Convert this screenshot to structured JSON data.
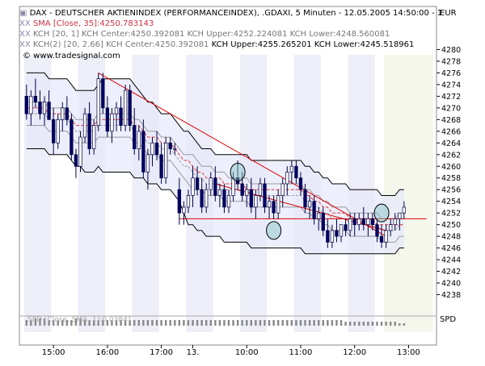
{
  "header": {
    "title_pre": "▣",
    "title": "DAX  - DEUTSCHER AKTIENINDEX (PERFORMANCEINDEX), .GDAXI, 5 Minuten - 12.05.2005 14:50:00 - 1",
    "currency": "EUR",
    "indicators": {
      "sma_prefix": "XX",
      "sma": "SMA [Close, 35]:4250.783143",
      "kch1_prefix": "XX",
      "kch1": "KCH [20, 1] KCH Center:4250.392081 KCH Upper:4252.224081 KCH Lower:4248.560081",
      "kch2_prefix": "XX",
      "kch2_center": "KCH(2) [20, 2.66] KCH Center:4250.392081 ",
      "kch2_rest": "KCH Upper:4255.265201 KCH Lower:4245.518961"
    },
    "logo": "© www.tradesignal.com"
  },
  "subpanel": {
    "label": "SPD [Close, SMA, 1]:0.03841",
    "unit": "SPD"
  },
  "colors": {
    "up": "#ffffff",
    "down": "#000066",
    "sma": "#e03a3a",
    "kc_inner": "#999999",
    "kc_outer": "#000000",
    "band_fill": "#e6e8fb",
    "trend": "#dd0000",
    "ellipse": "#80c0c0",
    "shade_session": "#eeeef8",
    "shade_alt": "#f6f7ec"
  },
  "chart_data": {
    "type": "candlestick",
    "ylim": [
      4236,
      4282
    ],
    "yticks": [
      4238,
      4240,
      4242,
      4244,
      4246,
      4248,
      4250,
      4252,
      4254,
      4256,
      4258,
      4260,
      4262,
      4264,
      4266,
      4268,
      4270,
      4272,
      4274,
      4276,
      4278,
      4280
    ],
    "time_labels": [
      {
        "label": "15:00",
        "bar": 6
      },
      {
        "label": "16:00",
        "bar": 18
      },
      {
        "label": "17:00",
        "bar": 30
      },
      {
        "label": "13.",
        "bar": 37
      },
      {
        "label": "10:00",
        "bar": 49
      },
      {
        "label": "11:00",
        "bar": 61
      },
      {
        "label": "12:00",
        "bar": 73
      },
      {
        "label": "13:00",
        "bar": 85
      }
    ],
    "candles": [
      [
        4272,
        4274,
        4268,
        4269
      ],
      [
        4269,
        4273,
        4267,
        4272
      ],
      [
        4272,
        4275,
        4270,
        4271
      ],
      [
        4271,
        4273,
        4268,
        4269
      ],
      [
        4269,
        4272,
        4267,
        4271
      ],
      [
        4271,
        4273,
        4268,
        4268
      ],
      [
        4268,
        4270,
        4262,
        4264
      ],
      [
        4264,
        4269,
        4263,
        4268
      ],
      [
        4268,
        4271,
        4266,
        4270
      ],
      [
        4270,
        4272,
        4267,
        4268
      ],
      [
        4268,
        4269,
        4261,
        4262
      ],
      [
        4262,
        4263,
        4258,
        4260
      ],
      [
        4260,
        4266,
        4259,
        4265
      ],
      [
        4265,
        4270,
        4264,
        4269
      ],
      [
        4269,
        4271,
        4262,
        4263
      ],
      [
        4263,
        4268,
        4262,
        4267
      ],
      [
        4267,
        4276,
        4266,
        4275
      ],
      [
        4275,
        4276,
        4269,
        4270
      ],
      [
        4270,
        4272,
        4265,
        4266
      ],
      [
        4266,
        4270,
        4264,
        4269
      ],
      [
        4269,
        4271,
        4266,
        4270
      ],
      [
        4270,
        4272,
        4266,
        4267
      ],
      [
        4267,
        4274,
        4266,
        4273
      ],
      [
        4273,
        4274,
        4266,
        4267
      ],
      [
        4267,
        4270,
        4262,
        4263
      ],
      [
        4263,
        4267,
        4261,
        4266
      ],
      [
        4266,
        4268,
        4258,
        4259
      ],
      [
        4259,
        4263,
        4256,
        4262
      ],
      [
        4262,
        4265,
        4260,
        4264
      ],
      [
        4264,
        4266,
        4261,
        4262
      ],
      [
        4262,
        4264,
        4257,
        4258
      ],
      [
        4258,
        4265,
        4257,
        4264
      ],
      [
        4264,
        4265,
        4262,
        4263
      ],
      [
        4263,
        4264,
        4262,
        4263
      ],
      [
        4256,
        4258,
        4250,
        4252
      ],
      [
        4252,
        4254,
        4250,
        4253
      ],
      [
        4253,
        4256,
        4252,
        4255
      ],
      [
        4255,
        4260,
        4253,
        4258
      ],
      [
        4258,
        4260,
        4255,
        4256
      ],
      [
        4256,
        4258,
        4252,
        4253
      ],
      [
        4253,
        4257,
        4252,
        4256
      ],
      [
        4256,
        4259,
        4255,
        4258
      ],
      [
        4258,
        4260,
        4254,
        4255
      ],
      [
        4255,
        4257,
        4253,
        4256
      ],
      [
        4256,
        4257,
        4252,
        4253
      ],
      [
        4253,
        4256,
        4252,
        4255
      ],
      [
        4255,
        4259,
        4254,
        4258
      ],
      [
        4258,
        4261,
        4256,
        4257
      ],
      [
        4257,
        4259,
        4254,
        4255
      ],
      [
        4255,
        4257,
        4253,
        4256
      ],
      [
        4256,
        4258,
        4252,
        4253
      ],
      [
        4253,
        4256,
        4251,
        4255
      ],
      [
        4255,
        4258,
        4254,
        4257
      ],
      [
        4257,
        4258,
        4252,
        4253
      ],
      [
        4253,
        4255,
        4251,
        4254
      ],
      [
        4254,
        4255,
        4251,
        4252
      ],
      [
        4252,
        4256,
        4251,
        4255
      ],
      [
        4255,
        4258,
        4253,
        4257
      ],
      [
        4257,
        4260,
        4255,
        4259
      ],
      [
        4259,
        4261,
        4257,
        4260
      ],
      [
        4260,
        4261,
        4257,
        4258
      ],
      [
        4258,
        4259,
        4255,
        4256
      ],
      [
        4256,
        4257,
        4252,
        4253
      ],
      [
        4253,
        4255,
        4251,
        4254
      ],
      [
        4254,
        4255,
        4250,
        4251
      ],
      [
        4251,
        4253,
        4249,
        4252
      ],
      [
        4252,
        4253,
        4248,
        4249
      ],
      [
        4249,
        4251,
        4246,
        4247
      ],
      [
        4247,
        4250,
        4246,
        4249
      ],
      [
        4249,
        4251,
        4247,
        4248
      ],
      [
        4248,
        4250,
        4247,
        4250
      ],
      [
        4250,
        4251,
        4248,
        4249
      ],
      [
        4249,
        4252,
        4248,
        4251
      ],
      [
        4251,
        4252,
        4248,
        4250
      ],
      [
        4250,
        4252,
        4249,
        4251
      ],
      [
        4251,
        4253,
        4249,
        4250
      ],
      [
        4250,
        4252,
        4248,
        4251
      ],
      [
        4251,
        4252,
        4249,
        4250
      ],
      [
        4250,
        4251,
        4247,
        4248
      ],
      [
        4248,
        4250,
        4246,
        4247
      ],
      [
        4247,
        4250,
        4246,
        4249
      ],
      [
        4249,
        4251,
        4248,
        4250
      ],
      [
        4250,
        4252,
        4249,
        4251
      ],
      [
        4251,
        4252,
        4249,
        4252
      ],
      [
        4252,
        4254,
        4251,
        4253
      ]
    ],
    "keltner_inner": {
      "upper": [
        4271,
        4271,
        4271,
        4271,
        4271,
        4270,
        4270,
        4270,
        4270,
        4270,
        4269,
        4268,
        4268,
        4268,
        4268,
        4268,
        4269,
        4269,
        4269,
        4269,
        4269,
        4269,
        4269,
        4269,
        4268,
        4268,
        4267,
        4266,
        4266,
        4266,
        4265,
        4265,
        4265,
        4264,
        4263,
        4262,
        4262,
        4262,
        4261,
        4260,
        4260,
        4260,
        4259,
        4259,
        4259,
        4258,
        4258,
        4258,
        4258,
        4258,
        4257,
        4257,
        4257,
        4257,
        4257,
        4257,
        4257,
        4257,
        4257,
        4257,
        4257,
        4257,
        4256,
        4256,
        4255,
        4255,
        4254,
        4254,
        4253,
        4253,
        4253,
        4253,
        4252,
        4252,
        4252,
        4252,
        4252,
        4252,
        4252,
        4251,
        4251,
        4251,
        4251,
        4252,
        4252
      ],
      "center": [
        4269,
        4269,
        4269,
        4269,
        4269,
        4268,
        4268,
        4268,
        4268,
        4268,
        4267,
        4266,
        4266,
        4266,
        4266,
        4266,
        4267,
        4267,
        4267,
        4267,
        4267,
        4267,
        4267,
        4267,
        4266,
        4266,
        4265,
        4264,
        4264,
        4264,
        4263,
        4263,
        4263,
        4262,
        4261,
        4260,
        4260,
        4259,
        4258,
        4258,
        4257,
        4257,
        4257,
        4257,
        4256,
        4256,
        4256,
        4256,
        4256,
        4256,
        4255,
        4255,
        4255,
        4255,
        4255,
        4255,
        4255,
        4255,
        4255,
        4255,
        4255,
        4255,
        4254,
        4254,
        4253,
        4253,
        4252,
        4252,
        4251,
        4251,
        4251,
        4251,
        4250,
        4250,
        4250,
        4250,
        4250,
        4250,
        4250,
        4249,
        4249,
        4249,
        4249,
        4250,
        4250
      ],
      "lower": [
        4267,
        4267,
        4267,
        4267,
        4267,
        4266,
        4266,
        4266,
        4266,
        4266,
        4265,
        4264,
        4264,
        4264,
        4264,
        4264,
        4265,
        4265,
        4265,
        4265,
        4265,
        4265,
        4265,
        4265,
        4264,
        4264,
        4263,
        4262,
        4262,
        4262,
        4261,
        4261,
        4261,
        4260,
        4259,
        4258,
        4257,
        4256,
        4256,
        4256,
        4255,
        4255,
        4255,
        4255,
        4254,
        4254,
        4254,
        4254,
        4254,
        4254,
        4253,
        4253,
        4253,
        4253,
        4253,
        4253,
        4253,
        4253,
        4253,
        4253,
        4253,
        4253,
        4252,
        4252,
        4251,
        4251,
        4250,
        4250,
        4249,
        4249,
        4249,
        4249,
        4248,
        4248,
        4248,
        4248,
        4248,
        4248,
        4248,
        4247,
        4247,
        4247,
        4247,
        4248,
        4248
      ]
    },
    "keltner_outer": {
      "upper": [
        4276,
        4276,
        4276,
        4276,
        4276,
        4275,
        4275,
        4275,
        4275,
        4275,
        4274,
        4273,
        4273,
        4273,
        4273,
        4273,
        4274,
        4275,
        4275,
        4275,
        4275,
        4275,
        4275,
        4275,
        4274,
        4273,
        4272,
        4271,
        4271,
        4270,
        4269,
        4269,
        4269,
        4268,
        4267,
        4266,
        4266,
        4265,
        4264,
        4263,
        4263,
        4263,
        4262,
        4262,
        4262,
        4262,
        4262,
        4262,
        4262,
        4262,
        4261,
        4261,
        4261,
        4261,
        4261,
        4261,
        4261,
        4261,
        4261,
        4261,
        4261,
        4261,
        4260,
        4260,
        4259,
        4259,
        4258,
        4258,
        4257,
        4257,
        4257,
        4257,
        4256,
        4256,
        4256,
        4256,
        4256,
        4256,
        4256,
        4255,
        4255,
        4255,
        4255,
        4256,
        4256
      ],
      "lower": [
        4263,
        4263,
        4263,
        4263,
        4263,
        4262,
        4262,
        4262,
        4262,
        4262,
        4261,
        4260,
        4260,
        4259,
        4259,
        4259,
        4260,
        4259,
        4259,
        4259,
        4259,
        4259,
        4259,
        4259,
        4258,
        4258,
        4258,
        4257,
        4257,
        4257,
        4256,
        4256,
        4256,
        4255,
        4254,
        4252,
        4250,
        4250,
        4249,
        4249,
        4248,
        4248,
        4248,
        4248,
        4247,
        4247,
        4247,
        4247,
        4247,
        4247,
        4246,
        4246,
        4246,
        4246,
        4246,
        4246,
        4246,
        4246,
        4246,
        4246,
        4246,
        4246,
        4245,
        4245,
        4245,
        4245,
        4245,
        4245,
        4245,
        4245,
        4245,
        4245,
        4245,
        4245,
        4245,
        4245,
        4245,
        4245,
        4245,
        4245,
        4245,
        4245,
        4245,
        4246,
        4246
      ]
    },
    "sma": [
      4270,
      4270,
      4270,
      4270,
      4270,
      4269,
      4269,
      4269,
      4269,
      4269,
      4268,
      4267,
      4267,
      4267,
      4267,
      4267,
      4268,
      4268,
      4268,
      4268,
      4268,
      4268,
      4268,
      4268,
      4267,
      4267,
      4266,
      4265,
      4265,
      4265,
      4264,
      4264,
      4264,
      4263,
      4262,
      4261,
      4261,
      4260,
      4259,
      4259,
      4258,
      4258,
      4258,
      4258,
      4257,
      4257,
      4257,
      4257,
      4257,
      4256,
      4256,
      4256,
      4256,
      4256,
      4256,
      4256,
      4256,
      4256,
      4256,
      4256,
      4256,
      4256,
      4255,
      4255,
      4254,
      4254,
      4253,
      4253,
      4252,
      4252,
      4252,
      4252,
      4251,
      4251,
      4251,
      4251,
      4251,
      4251,
      4250,
      4250,
      4250,
      4250,
      4250,
      4250,
      4250
    ],
    "trendlines": [
      {
        "bar1": 16,
        "y1": 4276,
        "bar2": 80,
        "y2": 4248
      },
      {
        "bar1": 42,
        "y1": 4257,
        "bar2": 80,
        "y2": 4249
      }
    ],
    "horizontal_line": {
      "bar1": 34,
      "bar2": 89,
      "y": 4251
    },
    "ellipses": [
      {
        "bar": 47,
        "y": 4259
      },
      {
        "bar": 55,
        "y": 4249
      },
      {
        "bar": 79,
        "y": 4252
      }
    ],
    "spd_values": [
      3,
      3,
      4,
      4,
      4,
      3,
      3,
      3,
      3,
      3,
      3,
      4,
      4,
      3,
      3,
      3,
      3,
      3,
      3,
      3,
      3,
      3,
      3,
      3,
      3,
      3,
      3,
      3,
      3,
      3,
      3,
      3,
      3,
      3,
      3,
      3,
      3,
      3,
      3,
      3,
      3,
      3,
      3,
      3,
      3,
      3,
      3,
      3,
      3,
      3,
      3,
      3,
      3,
      3,
      3,
      3,
      3,
      3,
      3,
      3,
      3,
      3,
      3,
      3,
      3,
      3,
      3,
      3,
      3,
      3,
      3,
      2,
      2,
      2,
      2,
      2,
      2,
      2,
      2,
      2,
      2,
      2,
      2,
      1,
      1
    ]
  }
}
